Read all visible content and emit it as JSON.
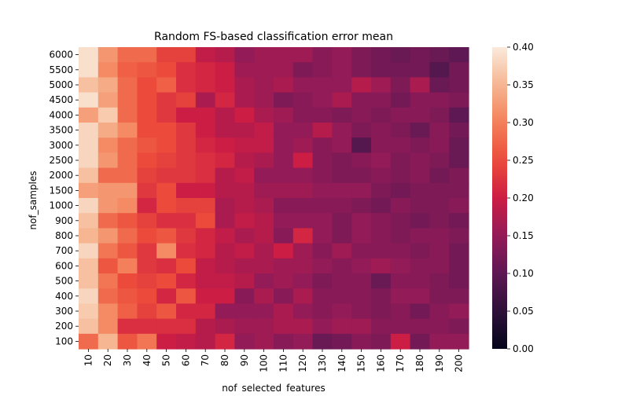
{
  "chart_data": {
    "type": "heatmap",
    "title": "Random FS-based classification error mean",
    "xlabel": "nof_selected_features",
    "ylabel": "nof_samples",
    "x": [
      "10",
      "20",
      "30",
      "40",
      "50",
      "60",
      "70",
      "80",
      "90",
      "100",
      "110",
      "120",
      "130",
      "140",
      "150",
      "160",
      "170",
      "180",
      "190",
      "200"
    ],
    "y": [
      "6000",
      "5500",
      "5000",
      "4500",
      "4000",
      "3500",
      "3000",
      "2500",
      "2000",
      "1500",
      "1000",
      "900",
      "800",
      "700",
      "600",
      "500",
      "400",
      "300",
      "200",
      "100"
    ],
    "values": [
      [
        0.39,
        0.32,
        0.28,
        0.28,
        0.24,
        0.24,
        0.19,
        0.18,
        0.15,
        0.16,
        0.16,
        0.16,
        0.14,
        0.15,
        0.13,
        0.12,
        0.11,
        0.12,
        0.11,
        0.1
      ],
      [
        0.39,
        0.31,
        0.27,
        0.26,
        0.25,
        0.22,
        0.21,
        0.2,
        0.16,
        0.16,
        0.16,
        0.13,
        0.14,
        0.15,
        0.13,
        0.12,
        0.12,
        0.12,
        0.09,
        0.12
      ],
      [
        0.36,
        0.34,
        0.28,
        0.25,
        0.27,
        0.22,
        0.21,
        0.2,
        0.17,
        0.16,
        0.17,
        0.15,
        0.15,
        0.15,
        0.18,
        0.16,
        0.13,
        0.17,
        0.11,
        0.12
      ],
      [
        0.39,
        0.33,
        0.28,
        0.25,
        0.23,
        0.24,
        0.17,
        0.21,
        0.17,
        0.16,
        0.13,
        0.14,
        0.15,
        0.17,
        0.14,
        0.14,
        0.12,
        0.14,
        0.14,
        0.13
      ],
      [
        0.33,
        0.37,
        0.28,
        0.25,
        0.23,
        0.2,
        0.2,
        0.18,
        0.2,
        0.17,
        0.16,
        0.14,
        0.14,
        0.13,
        0.14,
        0.13,
        0.14,
        0.14,
        0.13,
        0.1
      ],
      [
        0.38,
        0.34,
        0.31,
        0.25,
        0.25,
        0.23,
        0.2,
        0.18,
        0.18,
        0.19,
        0.15,
        0.15,
        0.18,
        0.15,
        0.13,
        0.14,
        0.13,
        0.11,
        0.14,
        0.12
      ],
      [
        0.38,
        0.31,
        0.28,
        0.26,
        0.25,
        0.23,
        0.21,
        0.2,
        0.19,
        0.19,
        0.15,
        0.16,
        0.14,
        0.15,
        0.09,
        0.14,
        0.14,
        0.13,
        0.14,
        0.11
      ],
      [
        0.38,
        0.32,
        0.28,
        0.25,
        0.24,
        0.23,
        0.22,
        0.21,
        0.18,
        0.17,
        0.15,
        0.2,
        0.14,
        0.13,
        0.14,
        0.15,
        0.13,
        0.14,
        0.13,
        0.11
      ],
      [
        0.36,
        0.28,
        0.28,
        0.24,
        0.23,
        0.23,
        0.22,
        0.18,
        0.19,
        0.15,
        0.15,
        0.15,
        0.14,
        0.13,
        0.13,
        0.14,
        0.13,
        0.14,
        0.12,
        0.13
      ],
      [
        0.33,
        0.32,
        0.32,
        0.23,
        0.25,
        0.2,
        0.2,
        0.18,
        0.18,
        0.16,
        0.16,
        0.16,
        0.15,
        0.15,
        0.15,
        0.13,
        0.12,
        0.13,
        0.13,
        0.13
      ],
      [
        0.38,
        0.32,
        0.31,
        0.21,
        0.25,
        0.24,
        0.24,
        0.17,
        0.18,
        0.17,
        0.14,
        0.14,
        0.14,
        0.14,
        0.13,
        0.12,
        0.14,
        0.13,
        0.13,
        0.14
      ],
      [
        0.36,
        0.28,
        0.26,
        0.24,
        0.22,
        0.22,
        0.25,
        0.17,
        0.19,
        0.18,
        0.15,
        0.15,
        0.15,
        0.13,
        0.15,
        0.14,
        0.13,
        0.12,
        0.13,
        0.12
      ],
      [
        0.35,
        0.32,
        0.28,
        0.25,
        0.26,
        0.23,
        0.21,
        0.19,
        0.17,
        0.18,
        0.14,
        0.21,
        0.15,
        0.13,
        0.15,
        0.14,
        0.13,
        0.14,
        0.14,
        0.13
      ],
      [
        0.38,
        0.29,
        0.26,
        0.23,
        0.31,
        0.22,
        0.21,
        0.18,
        0.19,
        0.17,
        0.2,
        0.16,
        0.14,
        0.16,
        0.14,
        0.14,
        0.14,
        0.13,
        0.14,
        0.12
      ],
      [
        0.36,
        0.26,
        0.3,
        0.23,
        0.22,
        0.25,
        0.19,
        0.18,
        0.17,
        0.17,
        0.16,
        0.16,
        0.15,
        0.14,
        0.15,
        0.16,
        0.15,
        0.14,
        0.14,
        0.12
      ],
      [
        0.36,
        0.29,
        0.25,
        0.24,
        0.25,
        0.21,
        0.19,
        0.19,
        0.18,
        0.15,
        0.16,
        0.15,
        0.13,
        0.14,
        0.14,
        0.11,
        0.14,
        0.14,
        0.13,
        0.12
      ],
      [
        0.38,
        0.28,
        0.26,
        0.25,
        0.21,
        0.26,
        0.2,
        0.2,
        0.14,
        0.17,
        0.14,
        0.17,
        0.14,
        0.14,
        0.14,
        0.13,
        0.15,
        0.15,
        0.13,
        0.13
      ],
      [
        0.37,
        0.31,
        0.27,
        0.24,
        0.26,
        0.21,
        0.21,
        0.15,
        0.15,
        0.15,
        0.17,
        0.15,
        0.14,
        0.15,
        0.14,
        0.13,
        0.14,
        0.12,
        0.14,
        0.15
      ],
      [
        0.36,
        0.31,
        0.22,
        0.22,
        0.22,
        0.22,
        0.18,
        0.17,
        0.16,
        0.16,
        0.17,
        0.17,
        0.15,
        0.16,
        0.16,
        0.14,
        0.14,
        0.14,
        0.14,
        0.13
      ],
      [
        0.28,
        0.35,
        0.26,
        0.29,
        0.2,
        0.19,
        0.18,
        0.21,
        0.15,
        0.16,
        0.14,
        0.15,
        0.11,
        0.12,
        0.14,
        0.13,
        0.2,
        0.12,
        0.15,
        0.15
      ]
    ],
    "colorbar": {
      "min": 0.0,
      "max": 0.4,
      "ticks": [
        "0.00",
        "0.05",
        "0.10",
        "0.15",
        "0.20",
        "0.25",
        "0.30",
        "0.35",
        "0.40"
      ]
    },
    "colormap": "rocket"
  }
}
